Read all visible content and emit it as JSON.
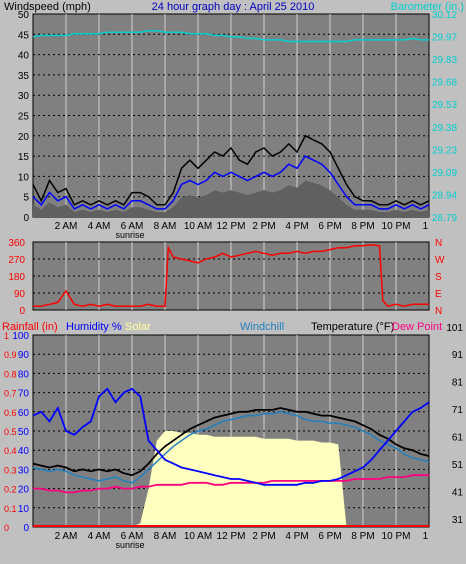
{
  "title": "24 hour graph day : April 25 2010",
  "x_ticks": [
    "2 AM",
    "4 AM",
    "6 AM",
    "8 AM",
    "10 AM",
    "12 PM",
    "2 PM",
    "4 PM",
    "6 PM",
    "8 PM",
    "10 PM",
    "1"
  ],
  "sunrise_label": "sunrise",
  "colors": {
    "background": "#c0c0c0",
    "plot_bg": "#808080",
    "grid": "#000000",
    "windspeed": "#000000",
    "wind_avg": "#0000ff",
    "wind_gust_shade": "#606060",
    "barometer": "#00d0d0",
    "direction": "#ff0000",
    "rainfall": "#ff0000",
    "humidity": "#0000ff",
    "solar": "#ffffc0",
    "windchill": "#2080c0",
    "temperature": "#000000",
    "dewpoint": "#ff0080",
    "title": "#0000c0"
  },
  "chart_data": [
    {
      "type": "line",
      "title": "24 hour graph day : April 25 2010",
      "ylabel": "Windspeed (mph)",
      "ylabel_right": "Barometer (in.)",
      "ylim": [
        0,
        50
      ],
      "y_ticks": [
        "0",
        "5",
        "10",
        "15",
        "20",
        "25",
        "30",
        "35",
        "40",
        "45",
        "50"
      ],
      "y2lim": [
        28.79,
        30.12
      ],
      "y2_ticks": [
        "28.79",
        "28.94",
        "29.09",
        "29.23",
        "29.38",
        "29.53",
        "29.68",
        "29.83",
        "29.97",
        "30.12"
      ],
      "x_hours": [
        0,
        0.5,
        1,
        1.5,
        2,
        2.5,
        3,
        3.5,
        4,
        4.5,
        5,
        5.5,
        6,
        6.5,
        7,
        7.5,
        8,
        8.5,
        9,
        9.5,
        10,
        10.5,
        11,
        11.5,
        12,
        12.5,
        13,
        13.5,
        14,
        14.5,
        15,
        15.5,
        16,
        16.5,
        17,
        17.5,
        18,
        18.5,
        19,
        19.5,
        20,
        20.5,
        21,
        21.5,
        22,
        22.5,
        23,
        23.5,
        24
      ],
      "series": [
        {
          "name": "Windspeed",
          "values": [
            8,
            4,
            9,
            6,
            7,
            3,
            4,
            3,
            4,
            3,
            4,
            3,
            6,
            6,
            5,
            3,
            3,
            6,
            12,
            14,
            12,
            14,
            16,
            15,
            17,
            14,
            13,
            16,
            17,
            15,
            16,
            18,
            16,
            20,
            19,
            18,
            16,
            12,
            8,
            5,
            4,
            4,
            3,
            3,
            4,
            3,
            4,
            3,
            4
          ]
        },
        {
          "name": "Average",
          "values": [
            5,
            3,
            6,
            4,
            5,
            2,
            3,
            2,
            3,
            2,
            3,
            2,
            4,
            4,
            3,
            2,
            2,
            4,
            8,
            9,
            8,
            9,
            11,
            10,
            11,
            10,
            9,
            10,
            11,
            10,
            11,
            13,
            12,
            15,
            14,
            13,
            11,
            8,
            5,
            3,
            3,
            3,
            2,
            2,
            3,
            2,
            3,
            2,
            3
          ]
        },
        {
          "name": "Barometer",
          "values": [
            29.97,
            29.98,
            29.98,
            29.98,
            29.98,
            29.99,
            29.99,
            29.99,
            29.99,
            30.0,
            30.0,
            30.0,
            30.0,
            30.0,
            30.01,
            30.01,
            30.0,
            30.0,
            30.0,
            29.99,
            29.99,
            29.99,
            29.98,
            29.98,
            29.97,
            29.97,
            29.96,
            29.96,
            29.95,
            29.95,
            29.95,
            29.94,
            29.94,
            29.94,
            29.94,
            29.94,
            29.94,
            29.94,
            29.94,
            29.95,
            29.95,
            29.95,
            29.95,
            29.95,
            29.95,
            29.95,
            29.96,
            29.95,
            29.95
          ]
        }
      ]
    },
    {
      "type": "line",
      "ylabel": "Wind Direction",
      "ylim": [
        0,
        360
      ],
      "y_ticks": [
        "0",
        "90",
        "180",
        "270",
        "360"
      ],
      "compass": [
        "N",
        "W",
        "S",
        "E",
        "N"
      ],
      "x_hours": [
        0,
        0.5,
        1,
        1.5,
        2,
        2.5,
        3,
        3.5,
        4,
        4.5,
        5,
        5.5,
        6,
        6.5,
        7,
        7.5,
        8,
        8.2,
        8.5,
        9,
        9.5,
        10,
        10.5,
        11,
        11.5,
        12,
        12.5,
        13,
        13.5,
        14,
        14.5,
        15,
        15.5,
        16,
        16.5,
        17,
        17.5,
        18,
        18.5,
        19,
        19.5,
        20,
        20.5,
        21,
        21.2,
        21.5,
        22,
        22.5,
        23,
        23.5,
        24
      ],
      "series": [
        {
          "name": "Direction",
          "values": [
            20,
            20,
            30,
            40,
            100,
            30,
            20,
            30,
            20,
            30,
            20,
            20,
            20,
            20,
            30,
            20,
            20,
            330,
            280,
            270,
            260,
            250,
            270,
            280,
            300,
            280,
            290,
            300,
            310,
            300,
            290,
            300,
            300,
            310,
            300,
            310,
            310,
            320,
            330,
            330,
            340,
            340,
            345,
            340,
            50,
            20,
            30,
            20,
            30,
            30,
            30
          ]
        }
      ]
    },
    {
      "type": "line",
      "ylabel": "Rainfall (in)",
      "legend": [
        "Rainfall (in)",
        "Humidity %",
        "Solar",
        "Windchill",
        "Temperature (°F)",
        "Dew Point"
      ],
      "ylim": [
        0,
        100
      ],
      "y_ticks": [
        "0",
        "10",
        "20",
        "30",
        "40",
        "50",
        "60",
        "70",
        "80",
        "90",
        "100"
      ],
      "rain_ticks": [
        "0",
        "0.1",
        "0.2",
        "0.3",
        "0.4",
        "0.5",
        "0.6",
        "0.7",
        "0.8",
        "0.9",
        "1"
      ],
      "y2_ticks": [
        "31",
        "41",
        "51",
        "61",
        "71",
        "81",
        "91",
        "101"
      ],
      "x_hours": [
        0,
        0.5,
        1,
        1.5,
        2,
        2.5,
        3,
        3.5,
        4,
        4.5,
        5,
        5.5,
        6,
        6.5,
        7,
        7.5,
        8,
        8.5,
        9,
        9.5,
        10,
        10.5,
        11,
        11.5,
        12,
        12.5,
        13,
        13.5,
        14,
        14.5,
        15,
        15.5,
        16,
        16.5,
        17,
        17.5,
        18,
        18.5,
        19,
        19.5,
        20,
        20.5,
        21,
        21.5,
        22,
        22.5,
        23,
        23.5,
        24
      ],
      "series": [
        {
          "name": "Humidity",
          "values": [
            58,
            60,
            55,
            62,
            50,
            48,
            52,
            55,
            68,
            72,
            65,
            70,
            72,
            68,
            45,
            40,
            35,
            33,
            31,
            30,
            29,
            28,
            27,
            26,
            25,
            25,
            24,
            23,
            22,
            22,
            22,
            22,
            22,
            23,
            23,
            24,
            24,
            25,
            27,
            29,
            31,
            35,
            40,
            45,
            50,
            55,
            60,
            62,
            65
          ]
        },
        {
          "name": "Temperature",
          "values": [
            33,
            32,
            31,
            32,
            31,
            29,
            30,
            29,
            30,
            29,
            30,
            28,
            27,
            29,
            33,
            38,
            42,
            45,
            48,
            51,
            53,
            55,
            57,
            58,
            59,
            60,
            60,
            61,
            61,
            61,
            62,
            61,
            60,
            60,
            59,
            58,
            58,
            57,
            56,
            55,
            53,
            51,
            48,
            46,
            43,
            41,
            40,
            38,
            37
          ]
        },
        {
          "name": "Windchill",
          "values": [
            31,
            30,
            29,
            30,
            29,
            27,
            26,
            25,
            24,
            25,
            26,
            24,
            23,
            26,
            30,
            34,
            38,
            42,
            45,
            48,
            50,
            51,
            53,
            55,
            56,
            57,
            58,
            58,
            59,
            59,
            60,
            59,
            58,
            56,
            55,
            55,
            54,
            54,
            53,
            52,
            50,
            48,
            45,
            43,
            41,
            38,
            36,
            35,
            34
          ]
        },
        {
          "name": "Dew Point",
          "values": [
            20,
            20,
            19,
            19,
            18,
            18,
            19,
            19,
            20,
            20,
            21,
            20,
            20,
            21,
            21,
            22,
            22,
            22,
            22,
            23,
            23,
            23,
            22,
            22,
            23,
            23,
            23,
            23,
            23,
            24,
            24,
            24,
            24,
            24,
            24,
            24,
            24,
            24,
            24,
            25,
            25,
            25,
            25,
            26,
            26,
            26,
            27,
            27,
            27
          ]
        },
        {
          "name": "Solar",
          "values": [
            0,
            0,
            0,
            0,
            0,
            0,
            0,
            0,
            0,
            0,
            0,
            0,
            0,
            2,
            20,
            45,
            50,
            50,
            49,
            49,
            48,
            48,
            47,
            47,
            47,
            47,
            47,
            47,
            46,
            46,
            46,
            46,
            45,
            45,
            45,
            44,
            44,
            43,
            0,
            0,
            0,
            0,
            0,
            0,
            0,
            0,
            0,
            0,
            0
          ]
        }
      ]
    }
  ]
}
